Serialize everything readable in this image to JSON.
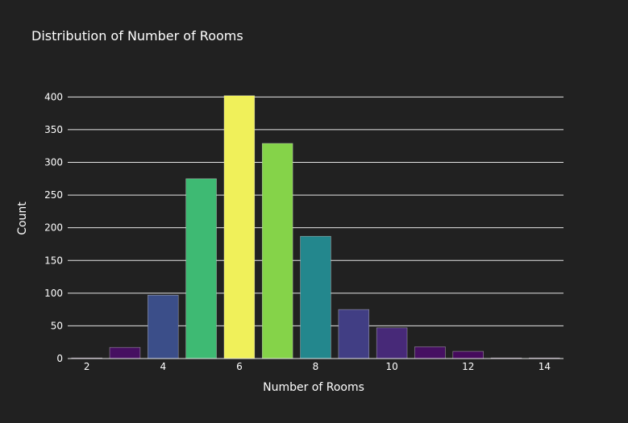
{
  "chart_data": {
    "type": "bar",
    "title": "Distribution of Number of Rooms",
    "xlabel": "Number of Rooms",
    "ylabel": "Count",
    "x": [
      2,
      3,
      4,
      5,
      6,
      7,
      8,
      9,
      10,
      11,
      12,
      13,
      14
    ],
    "values": [
      1,
      17,
      97,
      275,
      402,
      329,
      187,
      75,
      47,
      18,
      11,
      1,
      1
    ],
    "xlim": [
      1.5,
      14.5
    ],
    "ylim": [
      0,
      430
    ],
    "xticks": [
      2,
      4,
      6,
      8,
      10,
      12,
      14
    ],
    "yticks": [
      0,
      50,
      100,
      150,
      200,
      250,
      300,
      350,
      400
    ],
    "colorscale": "viridis",
    "grid": true,
    "background": "#212121",
    "colors": {
      "bar_min": "#440154",
      "bar_max": "#fde725"
    }
  }
}
